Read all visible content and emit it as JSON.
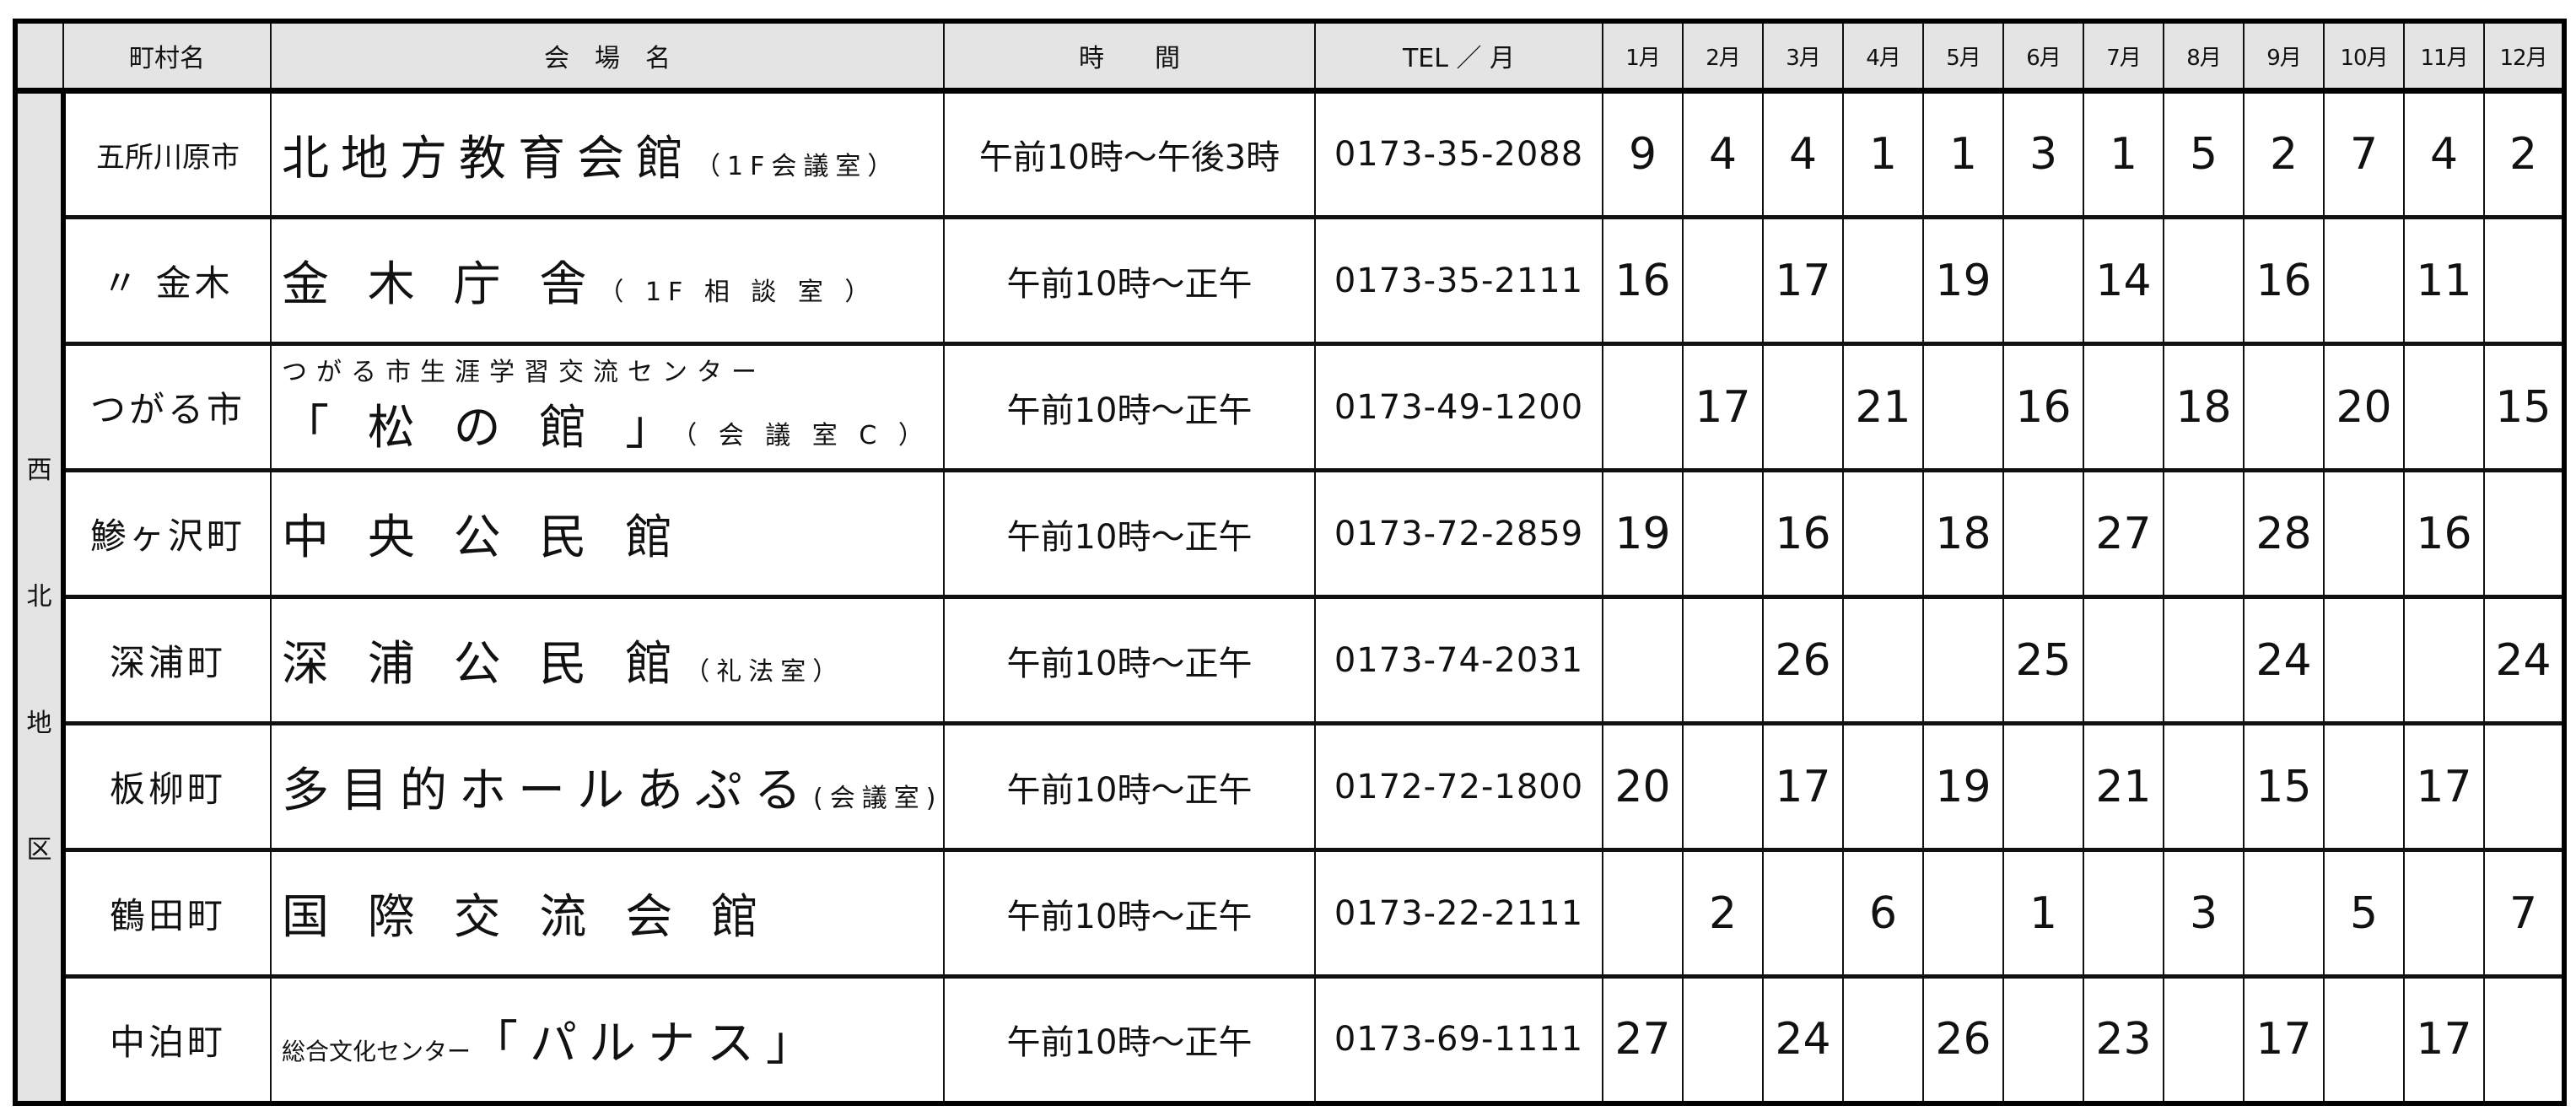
{
  "header": {
    "region": "",
    "town": "町村名",
    "venue": "会　場　名",
    "time": "時　　間",
    "tel": "TEL ／ 月",
    "months": [
      "1月",
      "2月",
      "3月",
      "4月",
      "5月",
      "6月",
      "7月",
      "8月",
      "9月",
      "10月",
      "11月",
      "12月"
    ]
  },
  "region_chars": [
    "西",
    "北",
    "地",
    "区"
  ],
  "rows": [
    {
      "town": "五所川原市",
      "venue_top": "",
      "venue_main": "北地方教育会館",
      "venue_sub": "（1F会議室）",
      "time": "午前10時～午後3時",
      "tel": "0173-35-2088",
      "days": [
        "9",
        "4",
        "4",
        "1",
        "1",
        "3",
        "1",
        "5",
        "2",
        "7",
        "4",
        "2"
      ]
    },
    {
      "town": "〃 金木",
      "venue_top": "",
      "venue_main": "金 木 庁 舎",
      "venue_sub": "（ 1F 相 談 室 ）",
      "time": "午前10時～正午",
      "tel": "0173-35-2111",
      "days": [
        "16",
        "",
        "17",
        "",
        "19",
        "",
        "14",
        "",
        "16",
        "",
        "11",
        ""
      ]
    },
    {
      "town": "つがる市",
      "venue_top": "つがる市生涯学習交流センター",
      "venue_main": "「 松 の 館 」",
      "venue_sub": "（ 会 議 室 C ）",
      "time": "午前10時～正午",
      "tel": "0173-49-1200",
      "days": [
        "",
        "17",
        "",
        "21",
        "",
        "16",
        "",
        "18",
        "",
        "20",
        "",
        "15"
      ]
    },
    {
      "town": "鯵ヶ沢町",
      "venue_top": "",
      "venue_main": "中 央 公 民 館",
      "venue_sub": "",
      "time": "午前10時～正午",
      "tel": "0173-72-2859",
      "days": [
        "19",
        "",
        "16",
        "",
        "18",
        "",
        "27",
        "",
        "28",
        "",
        "16",
        ""
      ]
    },
    {
      "town": "深浦町",
      "venue_top": "",
      "venue_main": "深 浦 公 民 館",
      "venue_sub": "（礼法室）",
      "time": "午前10時～正午",
      "tel": "0173-74-2031",
      "days": [
        "",
        "",
        "26",
        "",
        "",
        "25",
        "",
        "",
        "24",
        "",
        "",
        "24"
      ]
    },
    {
      "town": "板柳町",
      "venue_top": "",
      "venue_main": "多目的ホールあぷる",
      "venue_sub": "(会議室)",
      "time": "午前10時～正午",
      "tel": "0172-72-1800",
      "days": [
        "20",
        "",
        "17",
        "",
        "19",
        "",
        "21",
        "",
        "15",
        "",
        "17",
        ""
      ]
    },
    {
      "town": "鶴田町",
      "venue_top": "",
      "venue_main": "国 際 交 流 会 館",
      "venue_sub": "",
      "time": "午前10時～正午",
      "tel": "0173-22-2111",
      "days": [
        "",
        "2",
        "",
        "6",
        "",
        "1",
        "",
        "3",
        "",
        "5",
        "",
        "7"
      ]
    },
    {
      "town": "中泊町",
      "venue_top": "",
      "venue_main": "「パルナス」",
      "venue_sub": "",
      "venue_prefix": "総合文化センター",
      "time": "午前10時～正午",
      "tel": "0173-69-1111",
      "days": [
        "27",
        "",
        "24",
        "",
        "26",
        "",
        "23",
        "",
        "17",
        "",
        "17",
        ""
      ]
    }
  ]
}
